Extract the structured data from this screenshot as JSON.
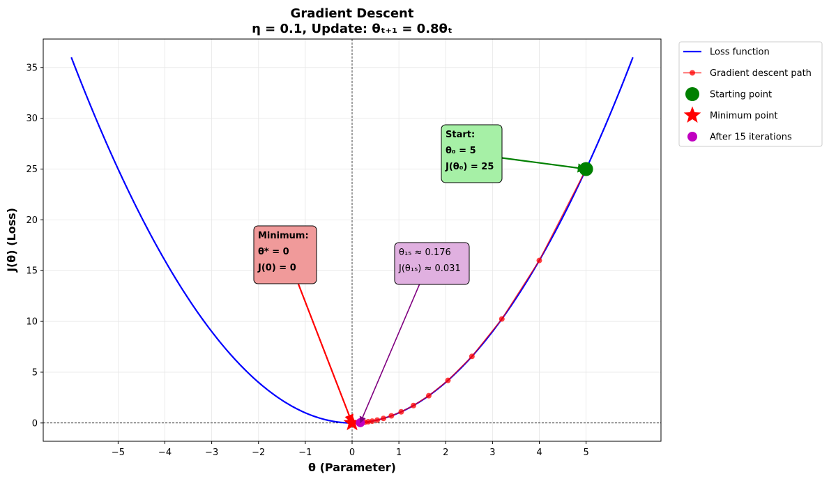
{
  "chart_data": {
    "type": "line",
    "title_line1": "Gradient Descent",
    "title_line2": "η = 0.1, Update: θₜ₊₁ = 0.8θₜ",
    "xlabel": "θ (Parameter)",
    "ylabel": "J(θ) (Loss)",
    "xlim": [
      -6.6,
      6.6
    ],
    "ylim": [
      -1.8,
      37.8
    ],
    "xticks": [
      -5,
      -4,
      -3,
      -2,
      -1,
      0,
      1,
      2,
      3,
      4,
      5
    ],
    "xtick_labels": [
      "−5",
      "−4",
      "−3",
      "−2",
      "−1",
      "0",
      "1",
      "2",
      "3",
      "4",
      "5"
    ],
    "yticks": [
      0,
      5,
      10,
      15,
      20,
      25,
      30,
      35
    ],
    "yticklabels": [
      "0",
      "5",
      "10",
      "15",
      "20",
      "25",
      "30",
      "35"
    ],
    "grid": true,
    "loss_curve": {
      "x_range": [
        -6,
        6
      ],
      "function": "theta^2",
      "color": "#0000ff"
    },
    "path": {
      "x": [
        5,
        4,
        3.2,
        2.56,
        2.048,
        1.638,
        1.311,
        1.049,
        0.839,
        0.671,
        0.537,
        0.429,
        0.344,
        0.275,
        0.22,
        0.176
      ],
      "y": [
        25,
        16,
        10.24,
        6.554,
        4.194,
        2.684,
        1.718,
        1.1,
        0.704,
        0.45,
        0.288,
        0.184,
        0.118,
        0.076,
        0.048,
        0.031
      ],
      "color": "#ff0000"
    },
    "start_point": {
      "x": 5,
      "y": 25,
      "color": "#008000"
    },
    "minimum_point": {
      "x": 0,
      "y": 0,
      "color": "#ff0000"
    },
    "final_point": {
      "x": 0.176,
      "y": 0.031,
      "color": "#c000c0"
    },
    "annotations": {
      "start": {
        "lines": [
          "Start:",
          "θ₀ = 5",
          "J(θ₀) = 25"
        ],
        "box_color": "#a6f0a6",
        "arrow_color": "#008000",
        "target": [
          5,
          25
        ],
        "anchor": [
          3.2,
          26.1
        ]
      },
      "minimum": {
        "lines": [
          "Minimum:",
          "θ* = 0",
          "J(0) = 0"
        ],
        "box_color": "#f09a9a",
        "arrow_color": "#ff0000",
        "target": [
          0,
          0
        ],
        "anchor": [
          -1.2,
          14.3
        ]
      },
      "final": {
        "lines": [
          "θ₁₅ ≈ 0.176",
          "J(θ₁₅) ≈ 0.031"
        ],
        "box_color": "#e0b0e0",
        "arrow_color": "#800080",
        "target": [
          0.176,
          0.031
        ],
        "anchor": [
          1.5,
          14.3
        ]
      }
    },
    "legend": {
      "position": "outside-right",
      "entries": [
        {
          "label": "Loss function",
          "marker": "line",
          "color": "#0000ff"
        },
        {
          "label": "Gradient descent path",
          "marker": "line-dot",
          "color": "#ff0000"
        },
        {
          "label": "Starting point",
          "marker": "circle",
          "color": "#008000"
        },
        {
          "label": "Minimum point",
          "marker": "star",
          "color": "#ff0000"
        },
        {
          "label": "After 15 iterations",
          "marker": "circle-small",
          "color": "#c000c0"
        }
      ]
    }
  }
}
